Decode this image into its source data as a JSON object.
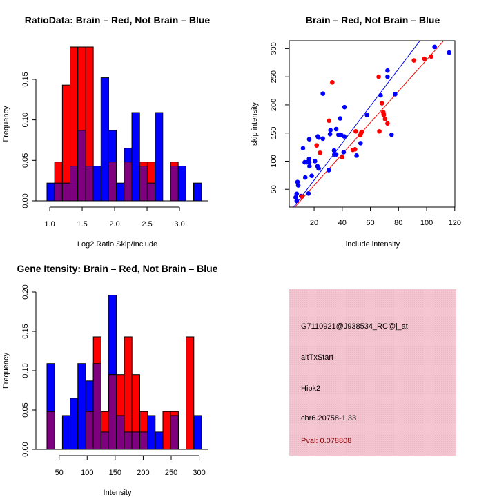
{
  "colors": {
    "brain": "#ff0000",
    "not_brain": "#0000ff",
    "overlap": "#7f007f",
    "info_bg": "#f3c5d1",
    "pval": "#8b0000"
  },
  "chart_data": [
    {
      "type": "bar",
      "title": "RatioData: Brain – Red, Not Brain – Blue",
      "xlabel": "Log2 Ratio Skip/Include",
      "ylabel": "Frequency",
      "bin_start": 0.957,
      "bin_width": 0.119,
      "xlim": [
        0.957,
        3.34
      ],
      "ylim": [
        0,
        0.19
      ],
      "xticks": [
        "1.0",
        "1.5",
        "2.0",
        "2.5",
        "3.0"
      ],
      "xtick_values": [
        1.0,
        1.5,
        2.0,
        2.5,
        3.0
      ],
      "yticks": [
        "0.00",
        "0.05",
        "0.10",
        "0.15"
      ],
      "ytick_values": [
        0,
        0.05,
        0.1,
        0.15
      ],
      "series": [
        {
          "name": "Not Brain",
          "color": "blue",
          "values": [
            0.022,
            0.022,
            0.022,
            0.043,
            0.087,
            0.043,
            0.043,
            0.152,
            0.087,
            0.022,
            0.065,
            0.109,
            0.043,
            0.022,
            0.109,
            0,
            0.043,
            0.043,
            0,
            0.022
          ]
        },
        {
          "name": "Brain",
          "color": "red",
          "values": [
            0,
            0.048,
            0.143,
            0.19,
            0.19,
            0.19,
            0,
            0,
            0.048,
            0,
            0.048,
            0,
            0.048,
            0.048,
            0,
            0,
            0.048,
            0,
            0,
            0
          ]
        }
      ]
    },
    {
      "type": "scatter",
      "title": "Brain – Red, Not Brain – Blue",
      "xlabel": "include intensity",
      "ylabel": "skip intensity",
      "xlim": [
        2.3,
        120.1
      ],
      "ylim": [
        18.4,
        314
      ],
      "xticks": [
        "20",
        "40",
        "60",
        "80",
        "100",
        "120"
      ],
      "xtick_values": [
        20,
        40,
        60,
        80,
        100,
        120
      ],
      "yticks": [
        "50",
        "100",
        "150",
        "200",
        "250",
        "300"
      ],
      "ytick_values": [
        50,
        100,
        150,
        200,
        250,
        300
      ],
      "series": [
        {
          "name": "Not Brain",
          "color": "blue",
          "fit": {
            "slope": 3.29,
            "intercept": 0.6
          },
          "points": [
            [
              6.9,
              35.6
            ],
            [
              7.6,
              29.5
            ],
            [
              8.2,
              63
            ],
            [
              8.7,
              57
            ],
            [
              7.6,
              42
            ],
            [
              10.8,
              38
            ],
            [
              16,
              42.5
            ],
            [
              12.1,
              123
            ],
            [
              13.3,
              98
            ],
            [
              14.9,
              98
            ],
            [
              16.4,
              104
            ],
            [
              16.5,
              98
            ],
            [
              16.7,
              91
            ],
            [
              13.7,
              71
            ],
            [
              18.3,
              74
            ],
            [
              16.5,
              139
            ],
            [
              20.6,
              100
            ],
            [
              22.4,
              91
            ],
            [
              23.2,
              87
            ],
            [
              22.6,
              144
            ],
            [
              23.1,
              142
            ],
            [
              26.2,
              140
            ],
            [
              26.2,
              220
            ],
            [
              30.4,
              84
            ],
            [
              31.3,
              148
            ],
            [
              31.6,
              155
            ],
            [
              34.2,
              119
            ],
            [
              34.4,
              112
            ],
            [
              35.7,
              112
            ],
            [
              35.7,
              157
            ],
            [
              37.3,
              147
            ],
            [
              38.6,
              147
            ],
            [
              38.5,
              176
            ],
            [
              39.1,
              147
            ],
            [
              41.4,
              144
            ],
            [
              41,
              116
            ],
            [
              41.6,
              196
            ],
            [
              50.2,
              110
            ],
            [
              53,
              132
            ],
            [
              57.6,
              182
            ],
            [
              67.3,
              217
            ],
            [
              72.2,
              261
            ],
            [
              72.2,
              250
            ],
            [
              75.1,
              147
            ],
            [
              77.6,
              219
            ],
            [
              105.7,
              303
            ],
            [
              116,
              293
            ]
          ]
        },
        {
          "name": "Brain",
          "color": "red",
          "fit": {
            "slope": 2.79,
            "intercept": 1.1
          },
          "points": [
            [
              32.9,
              240
            ],
            [
              30.6,
              172
            ],
            [
              21.8,
              128
            ],
            [
              24.2,
              115
            ],
            [
              39.9,
              107
            ],
            [
              47.5,
              120
            ],
            [
              49.1,
              121
            ],
            [
              49.6,
              153
            ],
            [
              52.7,
              146
            ],
            [
              53.4,
              150
            ],
            [
              53.8,
              152
            ],
            [
              65.9,
              250
            ],
            [
              66.4,
              153
            ],
            [
              68.2,
              203
            ],
            [
              69.2,
              187
            ],
            [
              69.4,
              184
            ],
            [
              69.5,
              182
            ],
            [
              70.4,
              175
            ],
            [
              72.2,
              167
            ],
            [
              91,
              279
            ],
            [
              98.4,
              282
            ],
            [
              103.3,
              286
            ],
            [
              11.3,
              37
            ]
          ]
        }
      ]
    },
    {
      "type": "bar",
      "title": "Gene Itensity: Brain – Red, Not Brain – Blue",
      "xlabel": "Intensity",
      "ylabel": "Frequency",
      "bin_start": 28.2,
      "bin_width": 13.8,
      "xlim": [
        28.2,
        304.2
      ],
      "ylim": [
        0,
        0.2
      ],
      "xticks": [
        "50",
        "100",
        "150",
        "200",
        "250",
        "300"
      ],
      "xtick_values": [
        50,
        100,
        150,
        200,
        250,
        300
      ],
      "yticks": [
        "0.00",
        "0.05",
        "0.10",
        "0.15",
        "0.20"
      ],
      "ytick_values": [
        0,
        0.05,
        0.1,
        0.15,
        0.2
      ],
      "series": [
        {
          "name": "Not Brain",
          "color": "blue",
          "values": [
            0.109,
            0,
            0.043,
            0.065,
            0.109,
            0.087,
            0.109,
            0.022,
            0.196,
            0.043,
            0.022,
            0.022,
            0.022,
            0.043,
            0.022,
            0,
            0.043,
            0,
            0,
            0.043
          ]
        },
        {
          "name": "Brain",
          "color": "red",
          "values": [
            0.048,
            0,
            0,
            0,
            0,
            0.048,
            0.143,
            0.048,
            0.095,
            0.095,
            0.143,
            0.095,
            0.048,
            0,
            0,
            0.048,
            0.048,
            0,
            0.143,
            0
          ]
        }
      ]
    }
  ],
  "info": {
    "probe_id": "G7110921@J938534_RC@j_at",
    "event_type": "altTxStart",
    "gene": "Hipk2",
    "location": "chr6.20758-1.33",
    "pval": "Pval: 0.078808"
  }
}
